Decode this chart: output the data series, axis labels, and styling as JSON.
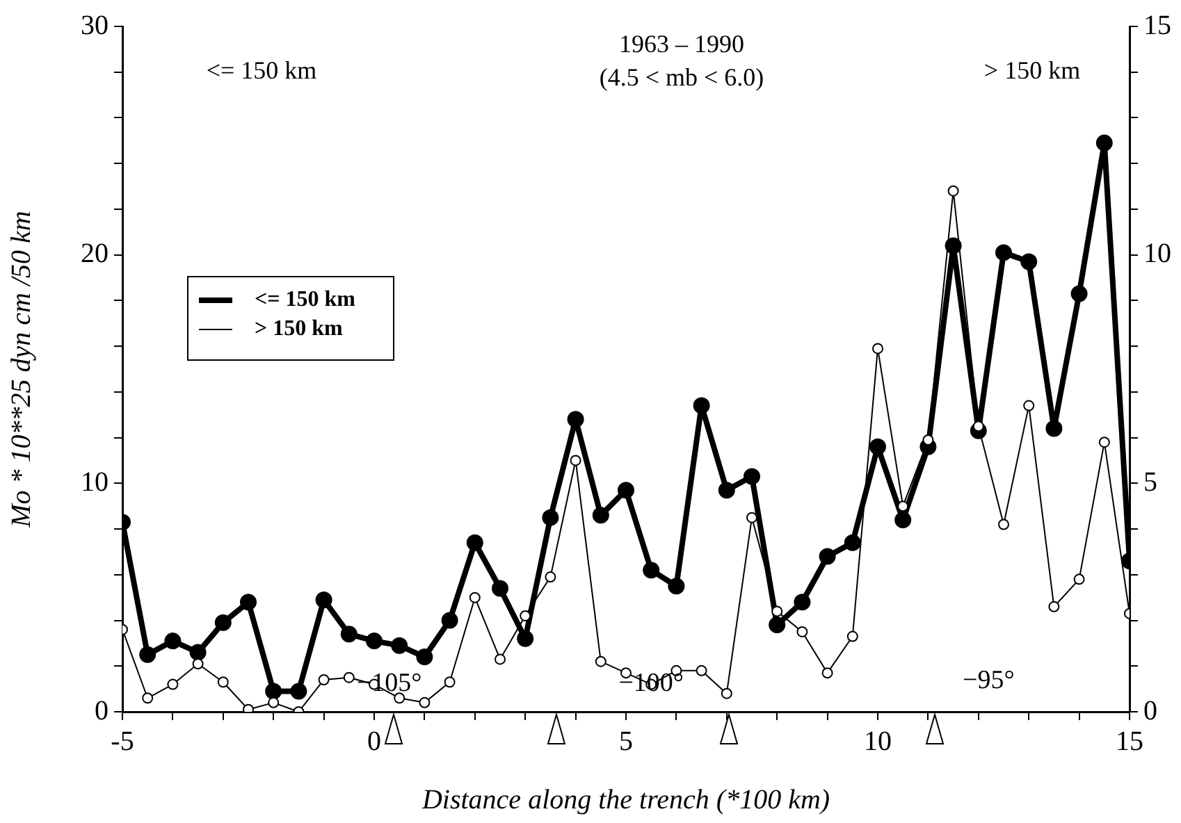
{
  "chart_data": {
    "type": "line",
    "title": "1963 – 1990",
    "subtitle": "(4.5 < mb < 6.0)",
    "xlabel": "Distance along the trench (*100 km)",
    "ylabel": "Mo * 10**25 dyn cm /50 km",
    "x": [
      -5,
      -4.5,
      -4,
      -3.5,
      -3,
      -2.5,
      -2,
      -1.5,
      -1,
      -0.5,
      0,
      0.5,
      1,
      1.5,
      2,
      2.5,
      3,
      3.5,
      4,
      4.5,
      5,
      5.5,
      6,
      6.5,
      7,
      7.5,
      8,
      8.5,
      9,
      9.5,
      10,
      10.5,
      11,
      11.5,
      12,
      12.5,
      13,
      13.5,
      14,
      14.5,
      15
    ],
    "series": [
      {
        "name": "<= 150 km",
        "color": "#000000",
        "values": [
          8.3,
          2.5,
          3.1,
          2.6,
          3.9,
          4.8,
          0.9,
          0.9,
          4.9,
          3.4,
          3.1,
          2.9,
          2.4,
          4.0,
          7.4,
          5.4,
          3.2,
          8.5,
          12.8,
          8.6,
          9.7,
          6.2,
          5.5,
          13.4,
          9.7,
          10.3,
          3.8,
          4.8,
          6.8,
          7.4,
          11.6,
          8.4,
          11.6,
          20.4,
          12.3,
          20.1,
          19.7,
          12.4,
          18.3,
          24.9,
          6.6
        ]
      },
      {
        "name": "> 150 km",
        "color": "#000000",
        "axis": "y2",
        "values": [
          1.8,
          0.3,
          0.6,
          1.05,
          0.65,
          0.05,
          0.2,
          0,
          0.7,
          0.75,
          0.6,
          0.3,
          0.2,
          0.65,
          2.5,
          1.15,
          2.1,
          2.95,
          5.5,
          1.1,
          0.85,
          0.6,
          0.9,
          0.9,
          0.4,
          4.25,
          2.2,
          1.75,
          0.85,
          1.65,
          7.95,
          4.5,
          5.95,
          11.4,
          6.25,
          4.1,
          6.7,
          2.3,
          2.9,
          5.9,
          2.15
        ]
      }
    ],
    "xlim": [
      -5,
      15
    ],
    "xticks": [
      -5,
      {
        "value": -4,
        "label": null
      },
      {
        "value": -3,
        "label": null
      },
      {
        "value": -2,
        "label": null
      },
      {
        "value": -1,
        "label": null
      },
      0,
      {
        "value": 1,
        "label": null
      },
      {
        "value": 2,
        "label": null
      },
      {
        "value": 3,
        "label": null
      },
      {
        "value": 4,
        "label": null
      },
      5,
      {
        "value": 6,
        "label": null
      },
      {
        "value": 7,
        "label": null
      },
      {
        "value": 8,
        "label": null
      },
      {
        "value": 9,
        "label": null
      },
      10,
      {
        "value": 11,
        "label": null
      },
      {
        "value": 12,
        "label": null
      },
      {
        "value": 13,
        "label": null
      },
      {
        "value": 14,
        "label": null
      },
      15
    ],
    "ylim": [
      0,
      30
    ],
    "yticks": [
      0,
      {
        "value": 2,
        "label": null
      },
      {
        "value": 4,
        "label": null
      },
      {
        "value": 6,
        "label": null
      },
      {
        "value": 8,
        "label": null
      },
      10,
      {
        "value": 12,
        "label": null
      },
      {
        "value": 14,
        "label": null
      },
      {
        "value": 16,
        "label": null
      },
      {
        "value": 18,
        "label": null
      },
      20,
      {
        "value": 22,
        "label": null
      },
      {
        "value": 24,
        "label": null
      },
      {
        "value": 26,
        "label": null
      },
      {
        "value": 28,
        "label": null
      },
      30
    ],
    "y2lim": [
      0,
      15
    ],
    "y2ticks": [
      0,
      {
        "value": 1,
        "label": null
      },
      {
        "value": 2,
        "label": null
      },
      {
        "value": 3,
        "label": null
      },
      {
        "value": 4,
        "label": null
      },
      5,
      {
        "value": 6,
        "label": null
      },
      {
        "value": 7,
        "label": null
      },
      {
        "value": 8,
        "label": null
      },
      {
        "value": 9,
        "label": null
      },
      10,
      {
        "value": 11,
        "label": null
      },
      {
        "value": 12,
        "label": null
      },
      {
        "value": 13,
        "label": null
      },
      {
        "value": 14,
        "label": null
      },
      15
    ],
    "annotations": [
      "<= 150 km",
      "> 150 km",
      "−105°",
      "−100°",
      "−95°"
    ],
    "grid": false,
    "legend": "left",
    "marker": "circle",
    "line_style": "solid"
  }
}
